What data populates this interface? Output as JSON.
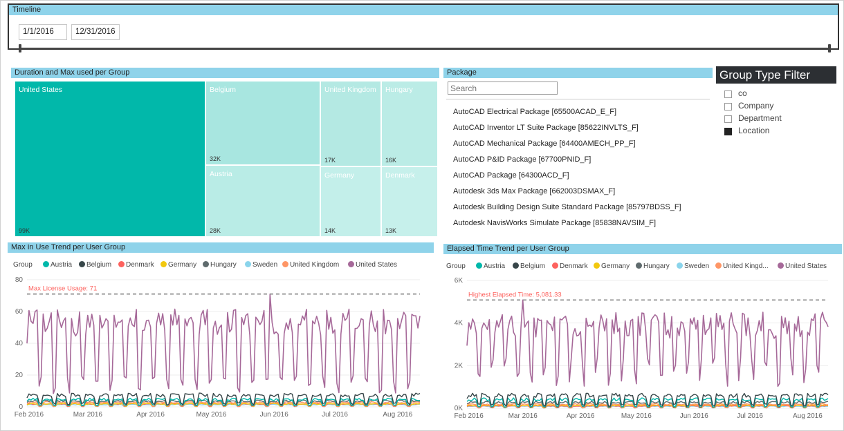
{
  "colors": {
    "Austria": "#01b8aa",
    "Belgium": "#374649",
    "Denmark": "#fd625e",
    "Germany": "#f2c80f",
    "Hungary": "#5f6b6d",
    "Sweden": "#8ad4eb",
    "United Kingdom": "#fe9666",
    "United States": "#a66999"
  },
  "timeline": {
    "title": "Timeline",
    "start_date": "1/1/2016",
    "end_date": "12/31/2016"
  },
  "treemap": {
    "title": "Duration and Max used per Group",
    "tiles": [
      {
        "name": "United States",
        "value_label": "99K",
        "color": "#01b8aa"
      },
      {
        "name": "Belgium",
        "value_label": "32K",
        "color": "#a8e6e0"
      },
      {
        "name": "Austria",
        "value_label": "28K",
        "color": "#b9ece6"
      },
      {
        "name": "United Kingdom",
        "value_label": "17K",
        "color": "#b4e9e3"
      },
      {
        "name": "Hungary",
        "value_label": "16K",
        "color": "#bbece6"
      },
      {
        "name": "Germany",
        "value_label": "14K",
        "color": "#c3efea"
      },
      {
        "name": "Denmark",
        "value_label": "13K",
        "color": "#c6f0eb"
      }
    ]
  },
  "package": {
    "title": "Package",
    "search_placeholder": "Search",
    "items": [
      "AutoCAD Electrical Package [65500ACAD_E_F]",
      "AutoCAD Inventor LT Suite Package [85622INVLTS_F]",
      "AutoCAD Mechanical Package [64400AMECH_PP_F]",
      "AutoCAD P&ID Package [67700PNID_F]",
      "AutoCAD Package [64300ACD_F]",
      "Autodesk 3ds Max Package [662003DSMAX_F]",
      "Autodesk Building Design Suite Standard Package [85797BDSS_F]",
      "Autodesk NavisWorks Simulate Package [85838NAVSIM_F]"
    ]
  },
  "group_filter": {
    "title": "Group Type Filter",
    "items": [
      {
        "label": "co",
        "checked": false
      },
      {
        "label": "Company",
        "checked": false
      },
      {
        "label": "Department",
        "checked": false
      },
      {
        "label": "Location",
        "checked": true
      }
    ]
  },
  "chart_data": [
    {
      "type": "line",
      "title": "Max in Use  Trend per User Group",
      "legend_title": "Group",
      "legend_placement": "top-left",
      "series_names": [
        "Austria",
        "Belgium",
        "Denmark",
        "Germany",
        "Hungary",
        "Sweden",
        "United Kingdom",
        "United States"
      ],
      "legend_labels": [
        "Austria",
        "Belgium",
        "Denmark",
        "Germany",
        "Hungary",
        "Sweden",
        "United Kingdom",
        "United States"
      ],
      "x_tick_labels": [
        "Feb 2016",
        "Mar 2016",
        "Apr 2016",
        "May 2016",
        "Jun 2016",
        "Jul 2016",
        "Aug 2016"
      ],
      "x_range": [
        "2016-01-31",
        "2016-08-12"
      ],
      "y_ticks": [
        0,
        20,
        40,
        60,
        80
      ],
      "ylim": [
        0,
        80
      ],
      "reference_line": {
        "label": "Max License Usage: 71",
        "value": 71
      },
      "series_levels": {
        "United States": {
          "high": 57,
          "low": 14
        },
        "Belgium": {
          "high": 8,
          "low": 2
        },
        "Austria": {
          "high": 5,
          "low": 1
        },
        "Hungary": {
          "high": 4,
          "low": 1
        },
        "United Kingdom": {
          "high": 3,
          "low": 0.5
        },
        "Germany": {
          "high": 2,
          "low": 0.5
        },
        "Denmark": {
          "high": 2,
          "low": 0.3
        },
        "Sweden": {
          "high": 1.5,
          "low": 0.2
        }
      }
    },
    {
      "type": "line",
      "title": "Elapsed Time Trend per User Group",
      "legend_title": "Group",
      "legend_placement": "top-left",
      "series_names": [
        "Austria",
        "Belgium",
        "Denmark",
        "Germany",
        "Hungary",
        "Sweden",
        "United Kingdom",
        "United States"
      ],
      "legend_labels": [
        "Austria",
        "Belgium",
        "Denmark",
        "Germany",
        "Hungary",
        "Sweden",
        "United Kingd...",
        "United States"
      ],
      "x_tick_labels": [
        "Feb 2016",
        "Mar 2016",
        "Apr 2016",
        "May 2016",
        "Jun 2016",
        "Jul 2016",
        "Aug 2016"
      ],
      "x_range": [
        "2016-01-31",
        "2016-08-12"
      ],
      "y_ticks": [
        0,
        2000,
        4000,
        6000
      ],
      "y_tick_labels": [
        "0K",
        "2K",
        "4K",
        "6K"
      ],
      "ylim": [
        0,
        6000
      ],
      "reference_line": {
        "label": "Highest Elapsed Time: 5,081.33",
        "value": 5081.33
      },
      "series_levels": {
        "United States": {
          "high": 4200,
          "low": 1700
        },
        "Belgium": {
          "high": 650,
          "low": 150
        },
        "Austria": {
          "high": 450,
          "low": 80
        },
        "Hungary": {
          "high": 300,
          "low": 60
        },
        "United Kingdom": {
          "high": 200,
          "low": 40
        },
        "Germany": {
          "high": 150,
          "low": 30
        },
        "Denmark": {
          "high": 120,
          "low": 20
        },
        "Sweden": {
          "high": 100,
          "low": 20
        }
      }
    }
  ]
}
